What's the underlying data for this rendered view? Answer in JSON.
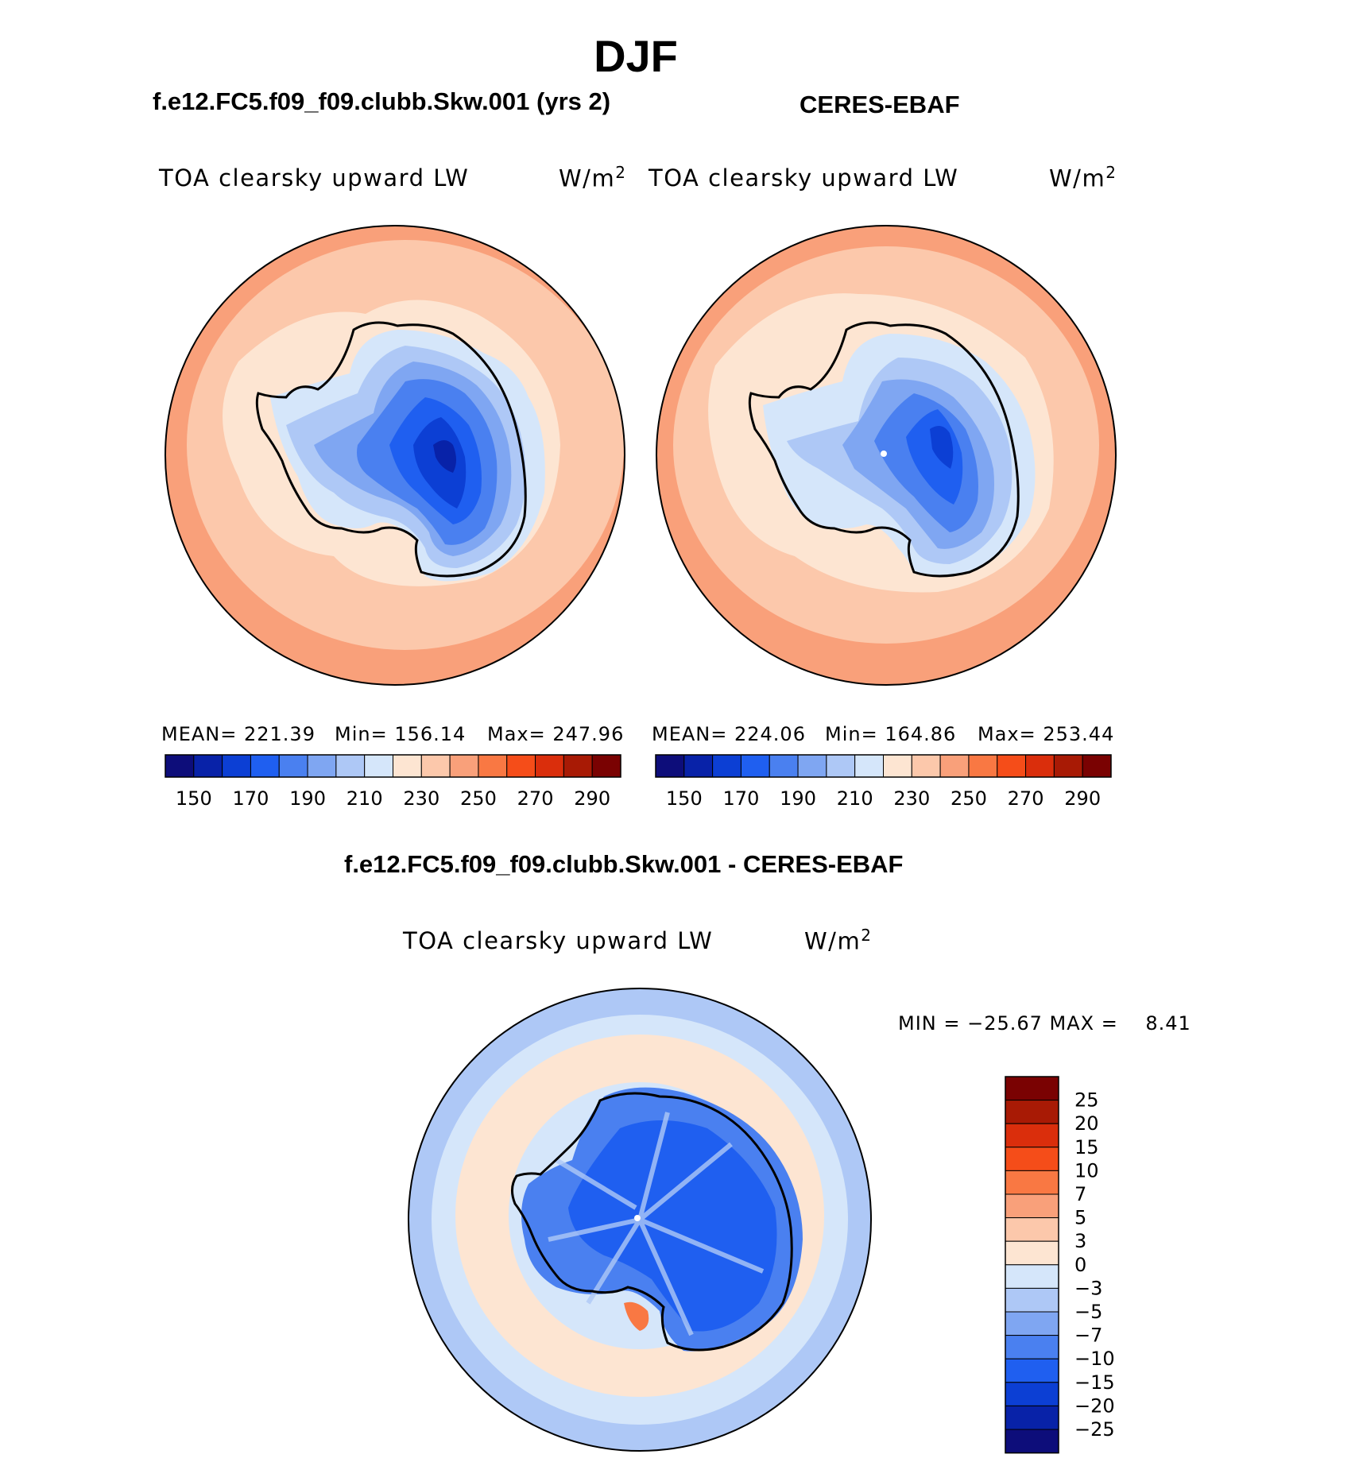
{
  "figure": {
    "season": "DJF",
    "case_title": "f.e12.FC5.f09_f09.clubb.Skw.001 (yrs 2)",
    "obs_title": "CERES-EBAF",
    "diff_title": "f.e12.FC5.f09_f09.clubb.Skw.001 - CERES-EBAF"
  },
  "panels": {
    "model": {
      "variable": "TOA clearsky upward LW",
      "units": "W/m",
      "units_sup": "2",
      "mean_text": "MEAN= 221.39",
      "min_text": "Min= 156.14",
      "max_text": "Max= 247.96"
    },
    "obs": {
      "variable": "TOA clearsky upward LW",
      "units": "W/m",
      "units_sup": "2",
      "mean_text": "MEAN= 224.06",
      "min_text": "Min= 164.86",
      "max_text": "Max= 253.44"
    },
    "diff": {
      "variable": "TOA clearsky upward LW",
      "units": "W/m",
      "units_sup": "2",
      "minmax_text": "MIN = −25.67 MAX =    8.41"
    }
  },
  "chart_data": [
    {
      "type": "heatmap",
      "name": "model",
      "title": "TOA clearsky upward LW",
      "projection": "south polar stereographic",
      "mean": 221.39,
      "min": 156.14,
      "max": 247.96,
      "levels": [
        150,
        160,
        170,
        180,
        190,
        200,
        210,
        220,
        230,
        240,
        250,
        260,
        270,
        280,
        290
      ],
      "colorbar_labels": [
        "150",
        "170",
        "190",
        "210",
        "230",
        "250",
        "270",
        "290"
      ],
      "colors": [
        "#0d0d7a",
        "#0822a8",
        "#0c3fd4",
        "#1f5ff0",
        "#4a80f0",
        "#7fa6f2",
        "#aec8f6",
        "#d5e6fa",
        "#fde5d2",
        "#fcc8ab",
        "#f9a07a",
        "#f97843",
        "#f54d19",
        "#da2e0c",
        "#a81a05",
        "#7a0202"
      ]
    },
    {
      "type": "heatmap",
      "name": "obs",
      "title": "TOA clearsky upward LW",
      "projection": "south polar stereographic",
      "mean": 224.06,
      "min": 164.86,
      "max": 253.44,
      "levels": [
        150,
        160,
        170,
        180,
        190,
        200,
        210,
        220,
        230,
        240,
        250,
        260,
        270,
        280,
        290
      ],
      "colorbar_labels": [
        "150",
        "170",
        "190",
        "210",
        "230",
        "250",
        "270",
        "290"
      ],
      "colors": [
        "#0d0d7a",
        "#0822a8",
        "#0c3fd4",
        "#1f5ff0",
        "#4a80f0",
        "#7fa6f2",
        "#aec8f6",
        "#d5e6fa",
        "#fde5d2",
        "#fcc8ab",
        "#f9a07a",
        "#f97843",
        "#f54d19",
        "#da2e0c",
        "#a81a05",
        "#7a0202"
      ]
    },
    {
      "type": "heatmap",
      "name": "difference",
      "title": "TOA clearsky upward LW",
      "projection": "south polar stereographic",
      "min": -25.67,
      "max": 8.41,
      "levels": [
        -25,
        -20,
        -15,
        -10,
        -7,
        -5,
        -3,
        0,
        3,
        5,
        7,
        10,
        15,
        20,
        25
      ],
      "colorbar_labels": [
        "25",
        "20",
        "15",
        "10",
        "7",
        "5",
        "3",
        "0",
        "−3",
        "−5",
        "−7",
        "−10",
        "−15",
        "−20",
        "−25"
      ],
      "colors": [
        "#7a0202",
        "#a81a05",
        "#da2e0c",
        "#f54d19",
        "#f97843",
        "#f9a07a",
        "#fcc8ab",
        "#fde5d2",
        "#d5e6fa",
        "#aec8f6",
        "#7fa6f2",
        "#4a80f0",
        "#1f5ff0",
        "#0c3fd4",
        "#0822a8",
        "#0d0d7a"
      ]
    }
  ]
}
